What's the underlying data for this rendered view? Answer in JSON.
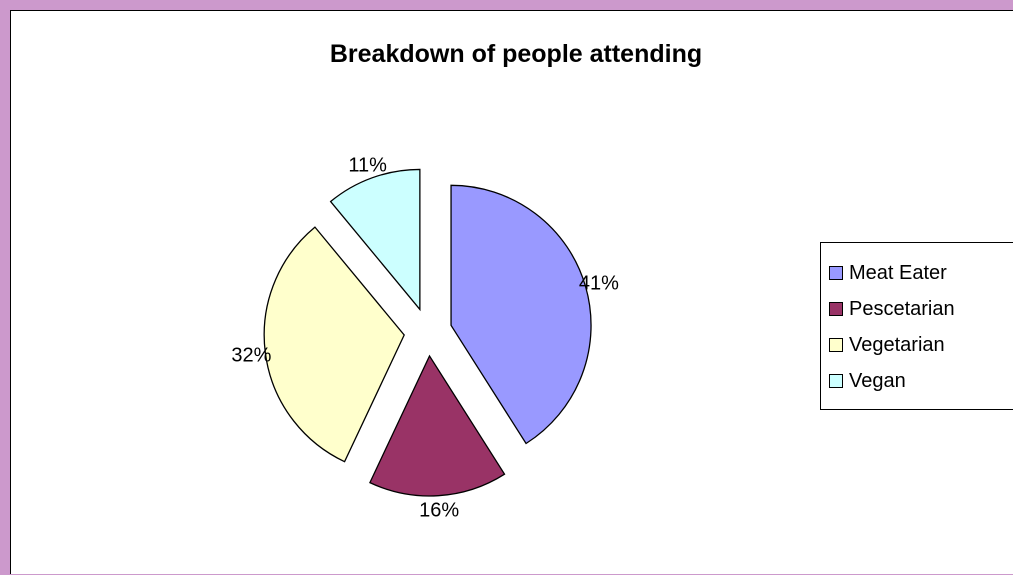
{
  "chart_data": {
    "type": "pie",
    "title": "Breakdown of people attending",
    "legend_position": "right",
    "exploded": true,
    "slices": [
      {
        "name": "Meat Eater",
        "value": 41,
        "label": "41%",
        "color": "#9999ff"
      },
      {
        "name": "Pescetarian",
        "value": 16,
        "label": "16%",
        "color": "#993366"
      },
      {
        "name": "Vegetarian",
        "value": 32,
        "label": "32%",
        "color": "#ffffcc"
      },
      {
        "name": "Vegan",
        "value": 11,
        "label": "11%",
        "color": "#ccffff"
      }
    ]
  },
  "colors": {
    "frame_background": "#cc99cc",
    "plot_background": "#ffffff",
    "slice_border": "#000000"
  }
}
